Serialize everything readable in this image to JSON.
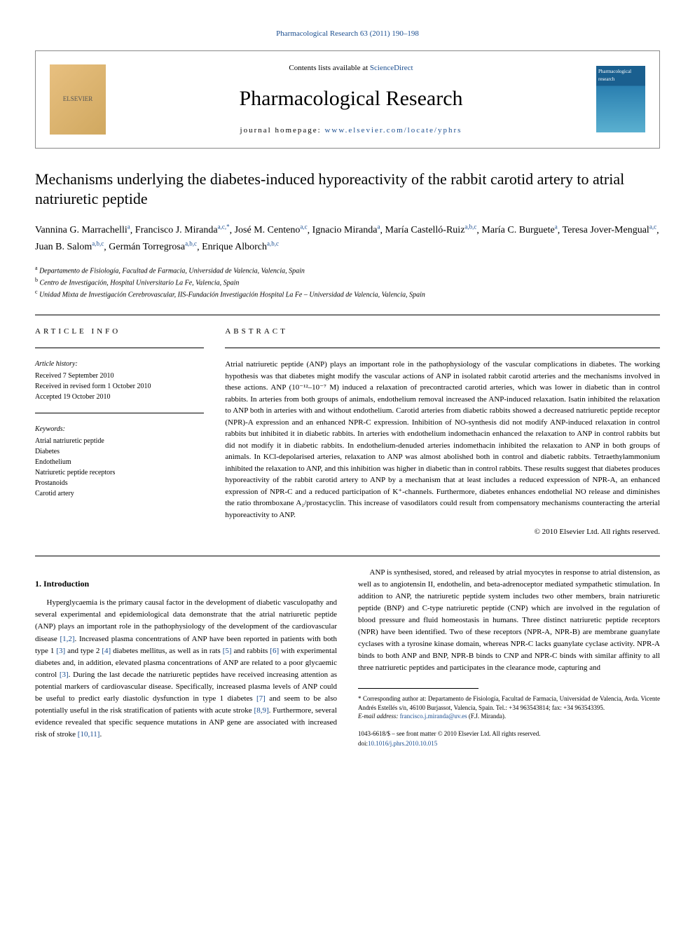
{
  "header": {
    "citation": "Pharmacological Research 63 (2011) 190–198",
    "contents_prefix": "Contents lists available at ",
    "contents_link": "ScienceDirect",
    "journal_title": "Pharmacological Research",
    "homepage_prefix": "journal homepage: ",
    "homepage_url": "www.elsevier.com/locate/yphrs",
    "publisher_logo": "ELSEVIER",
    "cover_label": "Pharmacological research"
  },
  "title": "Mechanisms underlying the diabetes-induced hyporeactivity of the rabbit carotid artery to atrial natriuretic peptide",
  "authors": [
    {
      "name": "Vannina G. Marrachelli",
      "aff": "a"
    },
    {
      "name": "Francisco J. Miranda",
      "aff": "a,c,*"
    },
    {
      "name": "José M. Centeno",
      "aff": "a,c"
    },
    {
      "name": "Ignacio Miranda",
      "aff": "a"
    },
    {
      "name": "María Castelló-Ruiz",
      "aff": "a,b,c"
    },
    {
      "name": "María C. Burguete",
      "aff": "a"
    },
    {
      "name": "Teresa Jover-Mengual",
      "aff": "a,c"
    },
    {
      "name": "Juan B. Salom",
      "aff": "a,b,c"
    },
    {
      "name": "Germán Torregrosa",
      "aff": "a,b,c"
    },
    {
      "name": "Enrique Alborch",
      "aff": "a,b,c"
    }
  ],
  "affiliations": {
    "a": "Departamento de Fisiología, Facultad de Farmacia, Universidad de Valencia, Valencia, Spain",
    "b": "Centro de Investigación, Hospital Universitario La Fe, Valencia, Spain",
    "c": "Unidad Mixta de Investigación Cerebrovascular, IIS-Fundación Investigación Hospital La Fe – Universidad de Valencia, Valencia, Spain"
  },
  "article_info": {
    "label": "ARTICLE INFO",
    "history_head": "Article history:",
    "received": "Received 7 September 2010",
    "revised": "Received in revised form 1 October 2010",
    "accepted": "Accepted 19 October 2010",
    "keywords_head": "Keywords:",
    "keywords": [
      "Atrial natriuretic peptide",
      "Diabetes",
      "Endothelium",
      "Natriuretic peptide receptors",
      "Prostanoids",
      "Carotid artery"
    ]
  },
  "abstract": {
    "label": "ABSTRACT",
    "text": "Atrial natriuretic peptide (ANP) plays an important role in the pathophysiology of the vascular complications in diabetes. The working hypothesis was that diabetes might modify the vascular actions of ANP in isolated rabbit carotid arteries and the mechanisms involved in these actions. ANP (10⁻¹²–10⁻⁷ M) induced a relaxation of precontracted carotid arteries, which was lower in diabetic than in control rabbits. In arteries from both groups of animals, endothelium removal increased the ANP-induced relaxation. Isatin inhibited the relaxation to ANP both in arteries with and without endothelium. Carotid arteries from diabetic rabbits showed a decreased natriuretic peptide receptor (NPR)-A expression and an enhanced NPR-C expression. Inhibition of NO-synthesis did not modify ANP-induced relaxation in control rabbits but inhibited it in diabetic rabbits. In arteries with endothelium indomethacin enhanced the relaxation to ANP in control rabbits but did not modify it in diabetic rabbits. In endothelium-denuded arteries indomethacin inhibited the relaxation to ANP in both groups of animals. In KCl-depolarised arteries, relaxation to ANP was almost abolished both in control and diabetic rabbits. Tetraethylammonium inhibited the relaxation to ANP, and this inhibition was higher in diabetic than in control rabbits. These results suggest that diabetes produces hyporeactivity of the rabbit carotid artery to ANP by a mechanism that at least includes a reduced expression of NPR-A, an enhanced expression of NPR-C and a reduced participation of K⁺-channels. Furthermore, diabetes enhances endothelial NO release and diminishes the ratio thromboxane A₂/prostacyclin. This increase of vasodilators could result from compensatory mechanisms counteracting the arterial hyporeactivity to ANP.",
    "copyright": "© 2010 Elsevier Ltd. All rights reserved."
  },
  "body": {
    "section1_head": "1. Introduction",
    "p1": "Hyperglycaemia is the primary causal factor in the development of diabetic vasculopathy and several experimental and epidemiological data demonstrate that the atrial natriuretic peptide (ANP) plays an important role in the pathophysiology of the development of the cardiovascular disease [1,2]. Increased plasma concentrations of ANP have been reported in patients with both type 1 [3] and type 2 [4] diabetes mellitus, as well as in rats [5] and rabbits [6] with experimental diabetes and, in addition, elevated plasma concentrations of ANP are related to a poor glycaemic control [3]. During the last decade the natriuretic peptides have received increasing attention as potential markers of cardiovascular disease. Specifically, increased plasma levels of ANP could be useful to predict early diastolic dysfunction in type 1 diabetes [7] and seem to be also potentially useful in the risk stratification of patients with acute stroke [8,9]. Furthermore, several evidence revealed that specific sequence mutations in ANP gene are associated with increased risk of stroke [10,11].",
    "p2": "ANP is synthesised, stored, and released by atrial myocytes in response to atrial distension, as well as to angiotensin II, endothelin, and beta-adrenoceptor mediated sympathetic stimulation. In addition to ANP, the natriuretic peptide system includes two other members, brain natriuretic peptide (BNP) and C-type natriuretic peptide (CNP) which are involved in the regulation of blood pressure and fluid homeostasis in humans. Three distinct natriuretic peptide receptors (NPR) have been identified. Two of these receptors (NPR-A, NPR-B) are membrane guanylate cyclases with a tyrosine kinase domain, whereas NPR-C lacks guanylate cyclase activity. NPR-A binds to both ANP and BNP, NPR-B binds to CNP and NPR-C binds with similar affinity to all three natriuretic peptides and participates in the clearance mode, capturing and"
  },
  "footnote": {
    "corresponding": "* Corresponding author at: Departamento de Fisiología, Facultad de Farmacia, Universidad de Valencia, Avda. Vicente Andrés Estellés s/n, 46100 Burjassot, Valencia, Spain. Tel.: +34 963543814; fax: +34 963543395.",
    "email_label": "E-mail address: ",
    "email": "francisco.j.miranda@uv.es",
    "email_name": " (F.J. Miranda)."
  },
  "doi": {
    "line1": "1043-6618/$ – see front matter © 2010 Elsevier Ltd. All rights reserved.",
    "line2_prefix": "doi:",
    "line2_link": "10.1016/j.phrs.2010.10.015"
  },
  "colors": {
    "link": "#1a4d8f",
    "text": "#000000",
    "border": "#888888"
  },
  "typography": {
    "body_fontsize": 11,
    "title_fontsize": 22,
    "journal_title_fontsize": 30,
    "footnote_fontsize": 9
  }
}
